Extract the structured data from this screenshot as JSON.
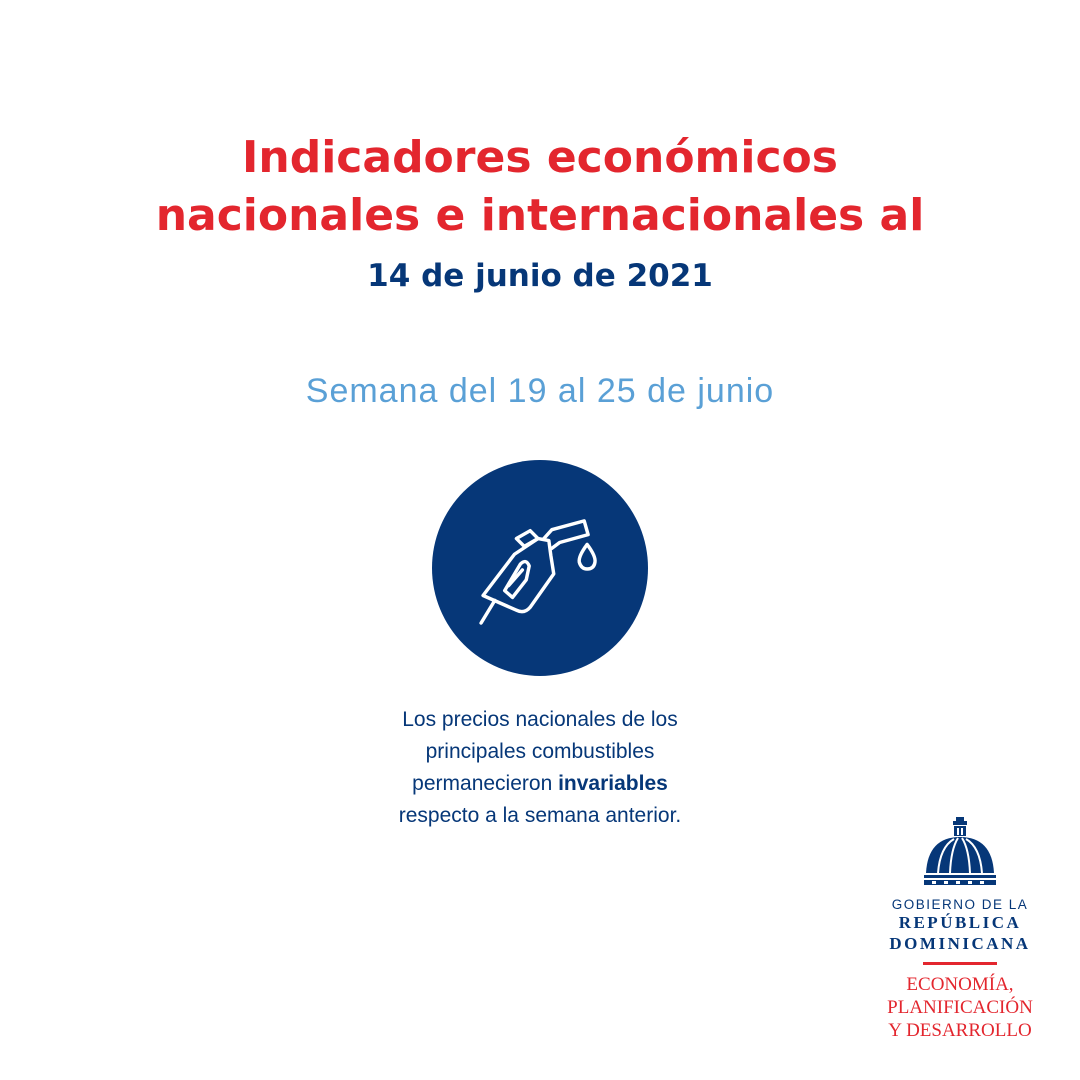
{
  "header": {
    "title_line1": "Indicadores económicos",
    "title_line2": "nacionales e internacionales al",
    "date": "14 de junio de 2021"
  },
  "week": "Semana del 19 al 25 de junio",
  "icon": "fuel-pump-nozzle-icon",
  "body": {
    "line1": "Los precios nacionales de los",
    "line2": "principales combustibles",
    "line3_prefix": "permanecieron ",
    "line3_bold": "invariables",
    "line4": "respecto a la semana anterior."
  },
  "logo": {
    "line1": "GOBIERNO DE LA",
    "line2": "REPÚBLICA",
    "line3": "DOMINICANA",
    "ministry1": "ECONOMÍA,",
    "ministry2": "PLANIFICACIÓN",
    "ministry3": "Y DESARROLLO"
  },
  "colors": {
    "red": "#e3262e",
    "navy": "#063778",
    "light_blue": "#5aa0d6"
  }
}
